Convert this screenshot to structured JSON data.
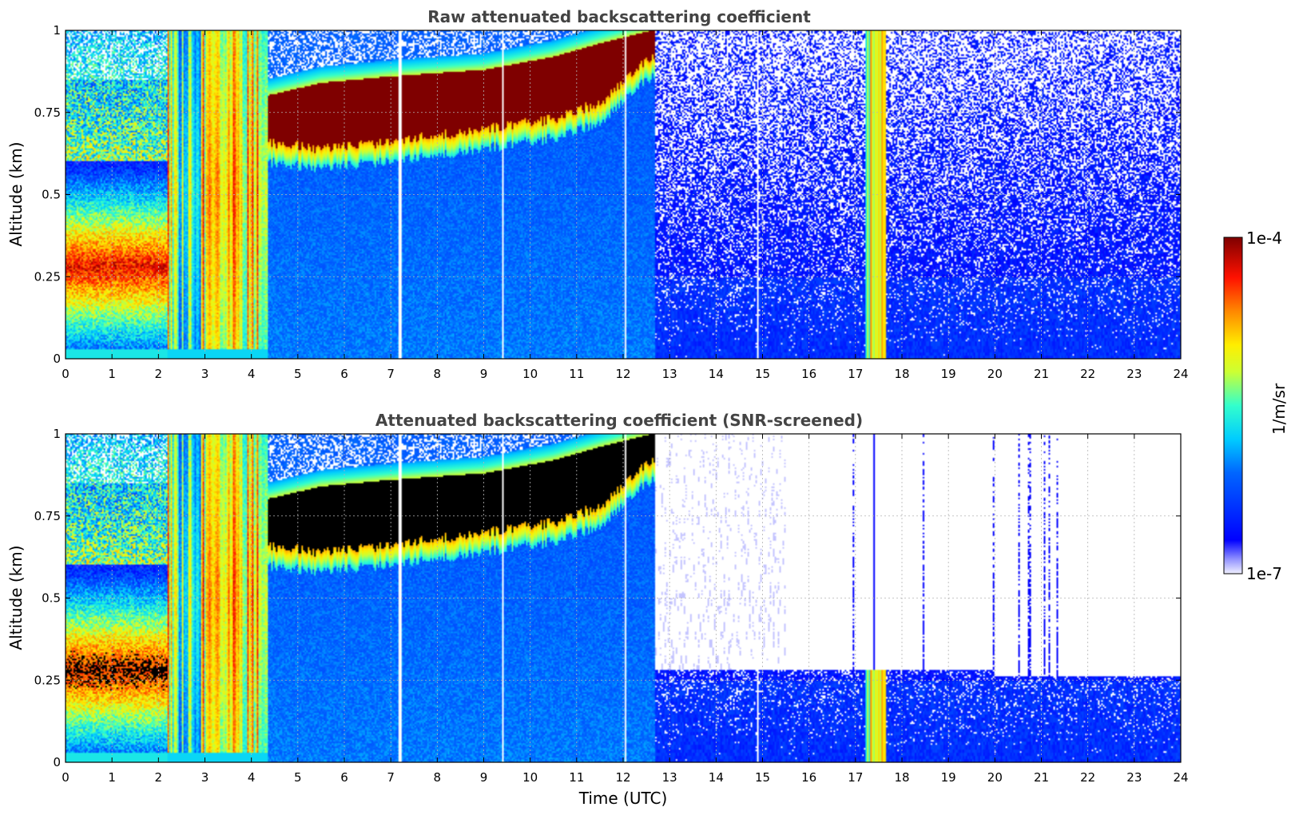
{
  "chart_data": [
    {
      "type": "heatmap",
      "title": "Raw attenuated backscattering coefficient",
      "ylabel": "Altitude (km)",
      "xlabel": "",
      "xlim": [
        0,
        24
      ],
      "ylim": [
        0,
        1
      ],
      "x_ticks": [
        "0",
        "1",
        "2",
        "3",
        "4",
        "5",
        "6",
        "7",
        "8",
        "9",
        "10",
        "11",
        "12",
        "13",
        "14",
        "15",
        "16",
        "17",
        "18",
        "19",
        "20",
        "21",
        "22",
        "23",
        "24"
      ],
      "y_ticks": [
        "0",
        "0.25",
        "0.5",
        "0.75",
        "1"
      ],
      "grid": true,
      "features": {
        "cloud_layer": [
          {
            "t": 4.3,
            "base": 0.66,
            "top": 0.8
          },
          {
            "t": 5.5,
            "base": 0.64,
            "top": 0.84
          },
          {
            "t": 7,
            "base": 0.66,
            "top": 0.86
          },
          {
            "t": 9,
            "base": 0.7,
            "top": 0.88
          },
          {
            "t": 10.5,
            "base": 0.73,
            "top": 0.92
          },
          {
            "t": 11.5,
            "base": 0.78,
            "top": 0.96
          },
          {
            "t": 12.6,
            "base": 0.92,
            "top": 1.0
          }
        ],
        "aerosol_layer": {
          "start": 0,
          "end": 2.2,
          "center": 0.28,
          "thickness": 0.2
        },
        "gaps": [
          7.2,
          9.4,
          12.05,
          14.9
        ],
        "precip_event": {
          "start": 17.2,
          "end": 17.6
        }
      }
    },
    {
      "type": "heatmap",
      "title": "Attenuated backscattering coefficient (SNR-screened)",
      "ylabel": "Altitude (km)",
      "xlabel": "Time (UTC)",
      "xlim": [
        0,
        24
      ],
      "ylim": [
        0,
        1
      ],
      "x_ticks": [
        "0",
        "1",
        "2",
        "3",
        "4",
        "5",
        "6",
        "7",
        "8",
        "9",
        "10",
        "11",
        "12",
        "13",
        "14",
        "15",
        "16",
        "17",
        "18",
        "19",
        "20",
        "21",
        "22",
        "23",
        "24"
      ],
      "y_ticks": [
        "0",
        "0.25",
        "0.5",
        "0.75",
        "1"
      ],
      "grid": true,
      "screening": {
        "screened_top_after_15h": 0.28,
        "screened_top_after_20h": 0.26
      }
    }
  ],
  "colorbar": {
    "label": "1/m/sr",
    "max_label": "1e-4",
    "min_label": "1e-7",
    "colormap": "jet",
    "scale": "log"
  }
}
